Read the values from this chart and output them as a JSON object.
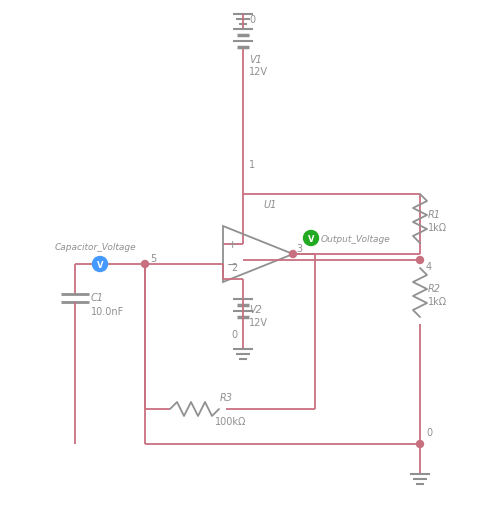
{
  "background_color": "#ffffff",
  "wire_color": "#c87080",
  "component_color": "#909090",
  "label_color": "#909090",
  "ground_color": "#909090",
  "node_dot_color": "#c87080",
  "green_probe_color": "#22aa22",
  "blue_probe_color": "#4499ff",
  "figsize": [
    5.0,
    5.1
  ],
  "dpi": 100,
  "xlim": [
    0,
    500
  ],
  "ylim": [
    0,
    510
  ]
}
